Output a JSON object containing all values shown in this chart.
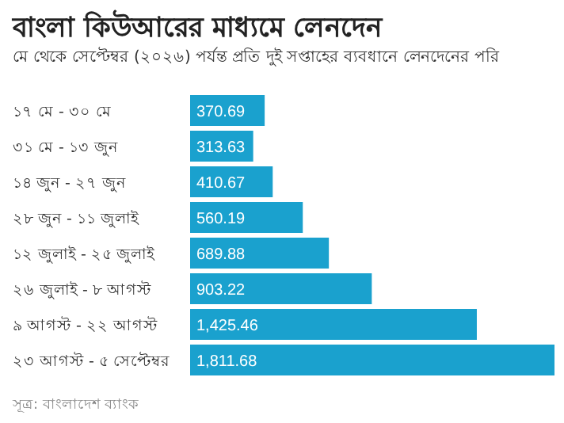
{
  "chart_data": {
    "type": "bar",
    "orientation": "horizontal",
    "title": "বাংলা কিউআরের মাধ্যমে লেনদেন",
    "subtitle": "মে থেকে সেপ্টেম্বর (২০২৬) পর্যন্ত প্রতি দুই সপ্তাহের ব্যবধানে লেনদেনের পরি",
    "categories": [
      "১৭ মে - ৩০ মে",
      "৩১ মে - ১৩ জুন",
      "১৪ জুন - ২৭ জুন",
      "২৮ জুন - ১১ জুলাই",
      "১২ জুলাই - ২৫ জুলাই",
      "২৬ জুলাই - ৮ আগস্ট",
      "৯ আগস্ট - ২২ আগস্ট",
      "২৩ আগস্ট - ৫ সেপ্টেম্বর"
    ],
    "values": [
      370.69,
      313.63,
      410.67,
      560.19,
      689.88,
      903.22,
      1425.46,
      1811.68
    ],
    "value_labels": [
      "370.69",
      "313.63",
      "410.67",
      "560.19",
      "689.88",
      "903.22",
      "1,425.46",
      "1,811.68"
    ],
    "color": "#1aa1ce",
    "annotations": [
      "সূত্র: বাংলাদেশ ব্যাংক"
    ]
  }
}
